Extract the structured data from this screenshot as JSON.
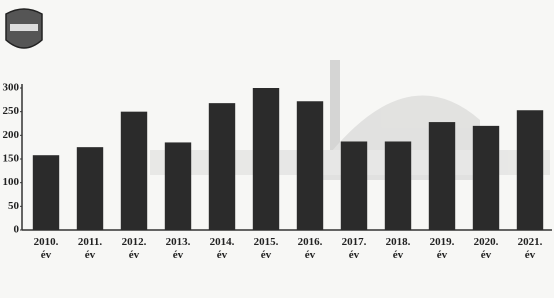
{
  "chart_data": {
    "type": "bar",
    "categories": [
      "2010. év",
      "2011. év",
      "2012. év",
      "2013. év",
      "2014. év",
      "2015. év",
      "2016. év",
      "2017. év",
      "2018. év",
      "2019. év",
      "2020. év",
      "2021. év"
    ],
    "values": [
      158,
      175,
      250,
      185,
      268,
      300,
      272,
      187,
      187,
      228,
      220,
      253
    ],
    "color": "#2b2b2b",
    "ylim": [
      0,
      300
    ],
    "yticks": [
      0,
      50,
      100,
      150,
      200,
      250,
      300
    ]
  }
}
